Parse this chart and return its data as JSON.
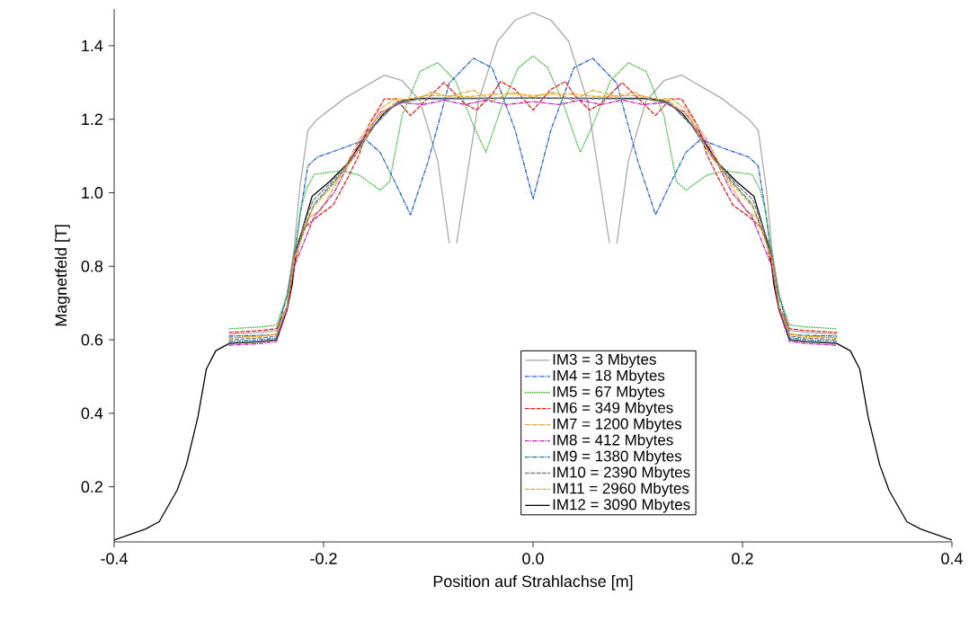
{
  "chart_data": {
    "type": "line",
    "xlabel": "Position auf Strahlachse [m]",
    "ylabel": "Magnetfeld [T]",
    "xlim": [
      -0.4,
      0.4
    ],
    "ylim": [
      0.05,
      1.5
    ],
    "xticks": [
      -0.4,
      -0.2,
      {
        "value": 0,
        "label": "0.0"
      },
      0.2,
      0.4
    ],
    "yticks": [
      0.2,
      0.4,
      0.6,
      0.8,
      {
        "value": 1,
        "label": "1.0"
      },
      1.2,
      1.4
    ],
    "legend": "bottom",
    "grid": false,
    "series": [
      {
        "name": "IM3 = 3 Mbytes",
        "color": "#aaaaaa",
        "line_style": "solid",
        "x": [
          -0.29,
          -0.26,
          -0.245,
          -0.235,
          -0.228,
          -0.223,
          -0.215,
          -0.206,
          -0.18,
          -0.142,
          -0.125,
          -0.108,
          -0.091,
          -0.08,
          -0.077,
          -0.073,
          -0.052,
          -0.034,
          -0.017,
          0,
          0.017,
          0.034,
          0.052,
          0.073,
          0.077,
          0.08,
          0.091,
          0.108,
          0.125,
          0.142,
          0.18,
          0.206,
          0.215,
          0.223,
          0.228,
          0.235,
          0.245,
          0.26,
          0.29
        ],
        "values": [
          0.615,
          0.62,
          0.625,
          0.72,
          0.85,
          1.007,
          1.17,
          1.2,
          1.257,
          1.32,
          1.305,
          1.25,
          1.087,
          0.862,
          null,
          0.862,
          1.25,
          1.412,
          1.47,
          1.49,
          1.47,
          1.412,
          1.25,
          0.862,
          null,
          0.862,
          1.087,
          1.25,
          1.305,
          1.32,
          1.257,
          1.2,
          1.17,
          1.007,
          0.85,
          0.72,
          0.625,
          0.62,
          0.615
        ]
      },
      {
        "name": "IM4 = 18 Mbytes",
        "color": "#1f5fd6",
        "line_style": "dashdot",
        "x": [
          -0.29,
          -0.26,
          -0.245,
          -0.235,
          -0.228,
          -0.222,
          -0.215,
          -0.206,
          -0.183,
          -0.16,
          -0.146,
          -0.131,
          -0.117,
          -0.1,
          -0.08,
          -0.057,
          -0.039,
          -0.017,
          0,
          0.017,
          0.039,
          0.057,
          0.08,
          0.1,
          0.117,
          0.131,
          0.146,
          0.16,
          0.183,
          0.206,
          0.215,
          0.222,
          0.228,
          0.235,
          0.245,
          0.26,
          0.29
        ],
        "values": [
          0.61,
          0.612,
          0.615,
          0.72,
          0.82,
          0.95,
          1.073,
          1.097,
          1.12,
          1.145,
          1.11,
          1.024,
          0.94,
          1.087,
          1.298,
          1.366,
          1.34,
          1.17,
          0.983,
          1.17,
          1.34,
          1.366,
          1.298,
          1.087,
          0.94,
          1.024,
          1.11,
          1.145,
          1.12,
          1.097,
          1.073,
          0.95,
          0.82,
          0.72,
          0.615,
          0.612,
          0.61
        ]
      },
      {
        "name": "IM5 = 67 Mbytes",
        "color": "#2db82d",
        "line_style": "dotted",
        "x": [
          -0.29,
          -0.26,
          -0.245,
          -0.235,
          -0.228,
          -0.222,
          -0.217,
          -0.209,
          -0.183,
          -0.166,
          -0.146,
          -0.137,
          -0.125,
          -0.108,
          -0.091,
          -0.074,
          -0.057,
          -0.045,
          -0.028,
          -0.014,
          0,
          0.014,
          0.028,
          0.045,
          0.057,
          0.074,
          0.091,
          0.108,
          0.125,
          0.137,
          0.146,
          0.166,
          0.183,
          0.209,
          0.217,
          0.222,
          0.228,
          0.235,
          0.245,
          0.26,
          0.29
        ],
        "values": [
          0.63,
          0.635,
          0.64,
          0.72,
          0.83,
          0.95,
          1.007,
          1.05,
          1.06,
          1.048,
          1.007,
          1.03,
          1.21,
          1.33,
          1.354,
          1.305,
          1.184,
          1.11,
          1.25,
          1.34,
          1.372,
          1.34,
          1.25,
          1.11,
          1.184,
          1.305,
          1.354,
          1.33,
          1.21,
          1.03,
          1.007,
          1.048,
          1.06,
          1.05,
          1.007,
          0.95,
          0.83,
          0.72,
          0.64,
          0.635,
          0.63
        ]
      },
      {
        "name": "IM6 = 349 Mbytes",
        "color": "#e02020",
        "line_style": "dashed",
        "x": [
          -0.29,
          -0.26,
          -0.245,
          -0.235,
          -0.228,
          -0.22,
          -0.206,
          -0.191,
          -0.177,
          -0.166,
          -0.157,
          -0.142,
          -0.131,
          -0.117,
          -0.103,
          -0.085,
          -0.065,
          -0.054,
          -0.039,
          -0.031,
          -0.017,
          0,
          0.017,
          0.031,
          0.039,
          0.054,
          0.065,
          0.085,
          0.103,
          0.117,
          0.131,
          0.142,
          0.157,
          0.166,
          0.177,
          0.191,
          0.206,
          0.22,
          0.228,
          0.235,
          0.245,
          0.26,
          0.29
        ],
        "values": [
          0.62,
          0.625,
          0.63,
          0.69,
          0.8,
          0.9,
          0.935,
          0.966,
          1.04,
          1.104,
          1.184,
          1.255,
          1.255,
          1.21,
          1.25,
          1.3,
          1.242,
          1.225,
          1.267,
          1.303,
          1.281,
          1.225,
          1.281,
          1.303,
          1.267,
          1.225,
          1.242,
          1.3,
          1.25,
          1.21,
          1.255,
          1.255,
          1.184,
          1.104,
          1.04,
          0.966,
          0.935,
          0.9,
          0.8,
          0.69,
          0.63,
          0.625,
          0.62
        ]
      },
      {
        "name": "IM7 = 1200 Mbytes",
        "color": "#e0a830",
        "line_style": "dashdot",
        "x": [
          -0.29,
          -0.26,
          -0.245,
          -0.235,
          -0.228,
          -0.215,
          -0.203,
          -0.185,
          -0.166,
          -0.145,
          -0.131,
          -0.114,
          -0.097,
          -0.08,
          -0.057,
          -0.039,
          -0.02,
          0,
          0.02,
          0.039,
          0.057,
          0.08,
          0.097,
          0.114,
          0.131,
          0.145,
          0.166,
          0.185,
          0.203,
          0.215,
          0.228,
          0.235,
          0.245,
          0.26,
          0.29
        ],
        "values": [
          0.605,
          0.61,
          0.615,
          0.69,
          0.82,
          0.93,
          0.952,
          1.04,
          1.145,
          1.23,
          1.257,
          1.25,
          1.274,
          1.262,
          1.279,
          1.25,
          1.274,
          1.26,
          1.274,
          1.25,
          1.279,
          1.262,
          1.274,
          1.25,
          1.257,
          1.23,
          1.145,
          1.04,
          0.952,
          0.93,
          0.82,
          0.69,
          0.615,
          0.61,
          0.605
        ]
      },
      {
        "name": "IM8 = 412 Mbytes",
        "color": "#c020b0",
        "line_style": "dashdot",
        "x": [
          -0.29,
          -0.26,
          -0.245,
          -0.235,
          -0.228,
          -0.209,
          -0.19,
          -0.166,
          -0.145,
          -0.125,
          -0.105,
          -0.085,
          -0.065,
          -0.045,
          -0.025,
          0,
          0.025,
          0.045,
          0.065,
          0.085,
          0.105,
          0.125,
          0.145,
          0.166,
          0.19,
          0.209,
          0.228,
          0.235,
          0.245,
          0.26,
          0.29
        ],
        "values": [
          0.585,
          0.59,
          0.595,
          0.68,
          0.8,
          0.935,
          1.0,
          1.136,
          1.22,
          1.245,
          1.24,
          1.252,
          1.24,
          1.252,
          1.24,
          1.248,
          1.24,
          1.252,
          1.24,
          1.252,
          1.24,
          1.245,
          1.22,
          1.136,
          1.0,
          0.935,
          0.8,
          0.68,
          0.595,
          0.59,
          0.585
        ]
      },
      {
        "name": "IM9 = 1380 Mbytes",
        "color": "#1f6f9f",
        "line_style": "dashdot",
        "x": [
          -0.29,
          -0.26,
          -0.245,
          -0.235,
          -0.228,
          -0.209,
          -0.19,
          -0.17,
          -0.15,
          -0.13,
          -0.11,
          0,
          0.11,
          0.13,
          0.15,
          0.17,
          0.19,
          0.209,
          0.228,
          0.235,
          0.245,
          0.26,
          0.29
        ],
        "values": [
          0.595,
          0.6,
          0.605,
          0.69,
          0.83,
          0.97,
          1.03,
          1.1,
          1.19,
          1.245,
          1.255,
          1.258,
          1.255,
          1.245,
          1.19,
          1.1,
          1.03,
          0.97,
          0.83,
          0.69,
          0.605,
          0.6,
          0.595
        ]
      },
      {
        "name": "IM10 = 2390 Mbytes",
        "color": "#808080",
        "line_style": "dashed",
        "x": [
          -0.29,
          -0.26,
          -0.245,
          -0.235,
          -0.228,
          -0.21,
          -0.192,
          -0.172,
          -0.152,
          -0.132,
          -0.11,
          0,
          0.11,
          0.132,
          0.152,
          0.172,
          0.192,
          0.21,
          0.228,
          0.235,
          0.245,
          0.26,
          0.29
        ],
        "values": [
          0.6,
          0.605,
          0.61,
          0.69,
          0.84,
          0.98,
          1.03,
          1.095,
          1.18,
          1.24,
          1.255,
          1.257,
          1.255,
          1.24,
          1.18,
          1.095,
          1.03,
          0.98,
          0.84,
          0.69,
          0.61,
          0.605,
          0.6
        ]
      },
      {
        "name": "IM11 = 2960 Mbytes",
        "color": "#f0a820",
        "line_style": "dashed",
        "x": [
          -0.29,
          -0.26,
          -0.245,
          -0.235,
          -0.228,
          -0.21,
          -0.19,
          -0.17,
          -0.15,
          -0.13,
          -0.1,
          -0.06,
          -0.03,
          0,
          0.03,
          0.06,
          0.1,
          0.13,
          0.15,
          0.17,
          0.19,
          0.21,
          0.228,
          0.235,
          0.245,
          0.26,
          0.29
        ],
        "values": [
          0.605,
          0.61,
          0.615,
          0.69,
          0.82,
          0.96,
          1.025,
          1.1,
          1.2,
          1.25,
          1.265,
          1.262,
          1.27,
          1.265,
          1.27,
          1.262,
          1.265,
          1.25,
          1.2,
          1.1,
          1.025,
          0.96,
          0.82,
          0.69,
          0.615,
          0.61,
          0.605
        ]
      },
      {
        "name": "IM12 = 3090 Mbytes",
        "color": "#000000",
        "line_style": "solid",
        "x": [
          -0.4,
          -0.37,
          -0.357,
          -0.34,
          -0.331,
          -0.32,
          -0.312,
          -0.303,
          -0.29,
          -0.26,
          -0.245,
          -0.235,
          -0.23,
          -0.226,
          -0.211,
          -0.194,
          -0.177,
          -0.16,
          -0.142,
          -0.125,
          -0.108,
          0,
          0.108,
          0.125,
          0.142,
          0.16,
          0.177,
          0.194,
          0.211,
          0.226,
          0.23,
          0.235,
          0.245,
          0.26,
          0.29,
          0.303,
          0.312,
          0.32,
          0.331,
          0.34,
          0.357,
          0.37,
          0.4
        ],
        "values": [
          0.055,
          0.085,
          0.105,
          0.19,
          0.26,
          0.39,
          0.52,
          0.57,
          0.59,
          0.595,
          0.6,
          0.68,
          0.75,
          0.845,
          0.99,
          1.031,
          1.08,
          1.153,
          1.218,
          1.25,
          1.257,
          1.257,
          1.257,
          1.25,
          1.218,
          1.153,
          1.08,
          1.031,
          0.99,
          0.845,
          0.75,
          0.68,
          0.6,
          0.595,
          0.59,
          0.57,
          0.52,
          0.39,
          0.26,
          0.19,
          0.105,
          0.085,
          0.055
        ]
      }
    ]
  }
}
